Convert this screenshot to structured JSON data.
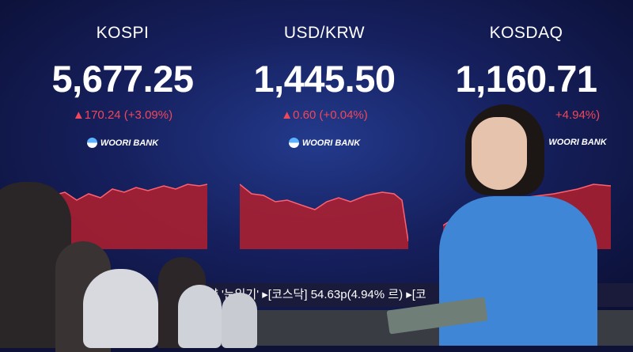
{
  "board": {
    "panels": [
      {
        "name": "KOSPI",
        "value": "5,677.25",
        "change": "▲170.24 (+3.09%)"
      },
      {
        "name": "USD/KRW",
        "value": "1,445.50",
        "change": "▲0.60 (+0.04%)"
      },
      {
        "name": "KOSDAQ",
        "value": "1,160.71",
        "change": "+4.94%)"
      }
    ],
    "bank_label": "WOORI BANK",
    "ticker": "약 '눈읽기'  ▸[코스닥] 54.63p(4.94%                      르)  ▸[코"
  },
  "colors": {
    "up": "#f0475c",
    "chart_fill": "#b3202e",
    "background": "#16205e",
    "sweater": "#3f86d6"
  }
}
